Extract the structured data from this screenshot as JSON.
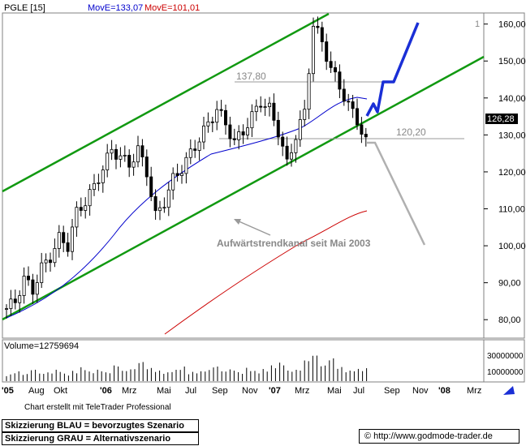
{
  "header": {
    "symbol": "PGLE [15]",
    "mov1": "MovE=133,07",
    "mov2": "MovE=101,01",
    "corner_digit": "1",
    "mov1_color": "#0000cc",
    "mov2_color": "#cc0000"
  },
  "chart_data": {
    "type": "candlestick",
    "y_ticks": [
      "160,00",
      "150,00",
      "140,00",
      "130,00",
      "120,00",
      "110,00",
      "100,00",
      "90,00",
      "80,00"
    ],
    "ylim": [
      75,
      163
    ],
    "last_price": "126,28",
    "x_ticks": [
      "'05",
      "Aug",
      "Okt",
      "'06",
      "Mrz",
      "Mai",
      "Jul",
      "Sep",
      "Nov",
      "'07",
      "Mrz",
      "Mai",
      "Jul",
      "Sep",
      "Nov",
      "'08",
      "Mrz"
    ],
    "close_series": [
      [
        0,
        83
      ],
      [
        2,
        85
      ],
      [
        4,
        91
      ],
      [
        6,
        88
      ],
      [
        8,
        94
      ],
      [
        10,
        97
      ],
      [
        12,
        102
      ],
      [
        14,
        100
      ],
      [
        16,
        109
      ],
      [
        18,
        112
      ],
      [
        20,
        116
      ],
      [
        22,
        121
      ],
      [
        24,
        126
      ],
      [
        26,
        124
      ],
      [
        28,
        122
      ],
      [
        30,
        126
      ],
      [
        32,
        120
      ],
      [
        34,
        108
      ],
      [
        36,
        112
      ],
      [
        38,
        118
      ],
      [
        40,
        121
      ],
      [
        42,
        125
      ],
      [
        44,
        129
      ],
      [
        46,
        133
      ],
      [
        48,
        137
      ],
      [
        50,
        133
      ],
      [
        52,
        128
      ],
      [
        54,
        131
      ],
      [
        56,
        135
      ],
      [
        58,
        139
      ],
      [
        60,
        137
      ],
      [
        62,
        131
      ],
      [
        64,
        122
      ],
      [
        66,
        130
      ],
      [
        68,
        136
      ],
      [
        70,
        160
      ],
      [
        72,
        155
      ],
      [
        74,
        148
      ],
      [
        76,
        143
      ],
      [
        78,
        138
      ],
      [
        80,
        134
      ],
      [
        82,
        128
      ],
      [
        83,
        126.28
      ]
    ],
    "annotations": {
      "level_high": "137,80",
      "level_low": "120,20",
      "channel_label": "Aufwärtstrendkanal seit Mai 2003"
    },
    "volume_label": "Volume=12759694",
    "volume_ticks": [
      "30000000",
      "10000000"
    ],
    "volume_values": [
      8,
      12,
      9,
      15,
      10,
      11,
      14,
      9,
      12,
      16,
      11,
      13,
      10,
      18,
      12,
      14,
      22,
      15,
      12,
      10,
      13,
      17,
      11,
      12,
      14,
      19,
      13,
      15,
      11,
      16,
      12,
      14,
      18,
      21,
      12,
      13,
      24,
      30,
      18,
      26,
      16,
      12,
      14,
      15
    ]
  },
  "footer": {
    "credit": "Chart erstellt mit TeleTrader Professional",
    "legend_blue": "Skizzierung BLAU = bevorzugtes Szenario",
    "legend_grey": "Skizzierung GRAU = Alternativszenario",
    "source": "© http://www.godmode-trader.de"
  }
}
